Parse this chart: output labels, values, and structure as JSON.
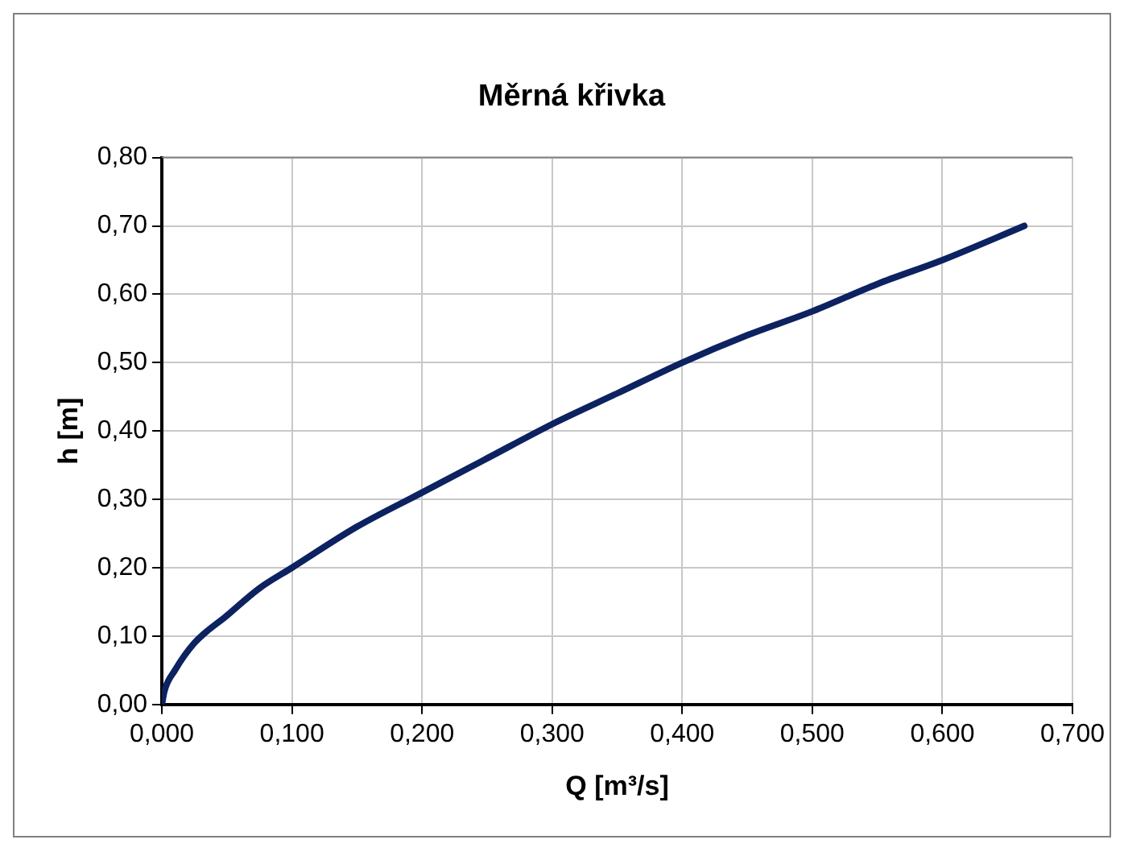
{
  "chart_data": {
    "type": "line",
    "title": "Měrná křivka",
    "xlabel": "Q [m³/s]",
    "ylabel": "h [m]",
    "x": [
      0,
      0.002,
      0.01,
      0.025,
      0.05,
      0.075,
      0.1,
      0.15,
      0.2,
      0.25,
      0.3,
      0.35,
      0.4,
      0.45,
      0.5,
      0.55,
      0.6,
      0.663
    ],
    "series": [
      {
        "color": "#0c2261",
        "values": [
          0,
          0.02,
          0.05,
          0.09,
          0.13,
          0.17,
          0.2,
          0.26,
          0.31,
          0.36,
          0.41,
          0.455,
          0.5,
          0.54,
          0.575,
          0.615,
          0.65,
          0.7
        ]
      }
    ],
    "xlim": [
      0,
      0.7
    ],
    "xticks": [
      {
        "value": 0,
        "label": "0,000"
      },
      {
        "value": 0.1,
        "label": "0,100"
      },
      {
        "value": 0.2,
        "label": "0,200"
      },
      {
        "value": 0.3,
        "label": "0,300"
      },
      {
        "value": 0.4,
        "label": "0,400"
      },
      {
        "value": 0.5,
        "label": "0,500"
      },
      {
        "value": 0.6,
        "label": "0,600"
      },
      {
        "value": 0.7,
        "label": "0,700"
      }
    ],
    "ylim": [
      0,
      0.8
    ],
    "yticks": [
      {
        "value": 0,
        "label": "0,00"
      },
      {
        "value": 0.1,
        "label": "0,10"
      },
      {
        "value": 0.2,
        "label": "0,20"
      },
      {
        "value": 0.3,
        "label": "0,30"
      },
      {
        "value": 0.4,
        "label": "0,40"
      },
      {
        "value": 0.5,
        "label": "0,50"
      },
      {
        "value": 0.6,
        "label": "0,60"
      },
      {
        "value": 0.7,
        "label": "0,70"
      },
      {
        "value": 0.8,
        "label": "0,80"
      }
    ],
    "grid": true,
    "legend": false,
    "marker": "none",
    "line_style": "solid"
  }
}
